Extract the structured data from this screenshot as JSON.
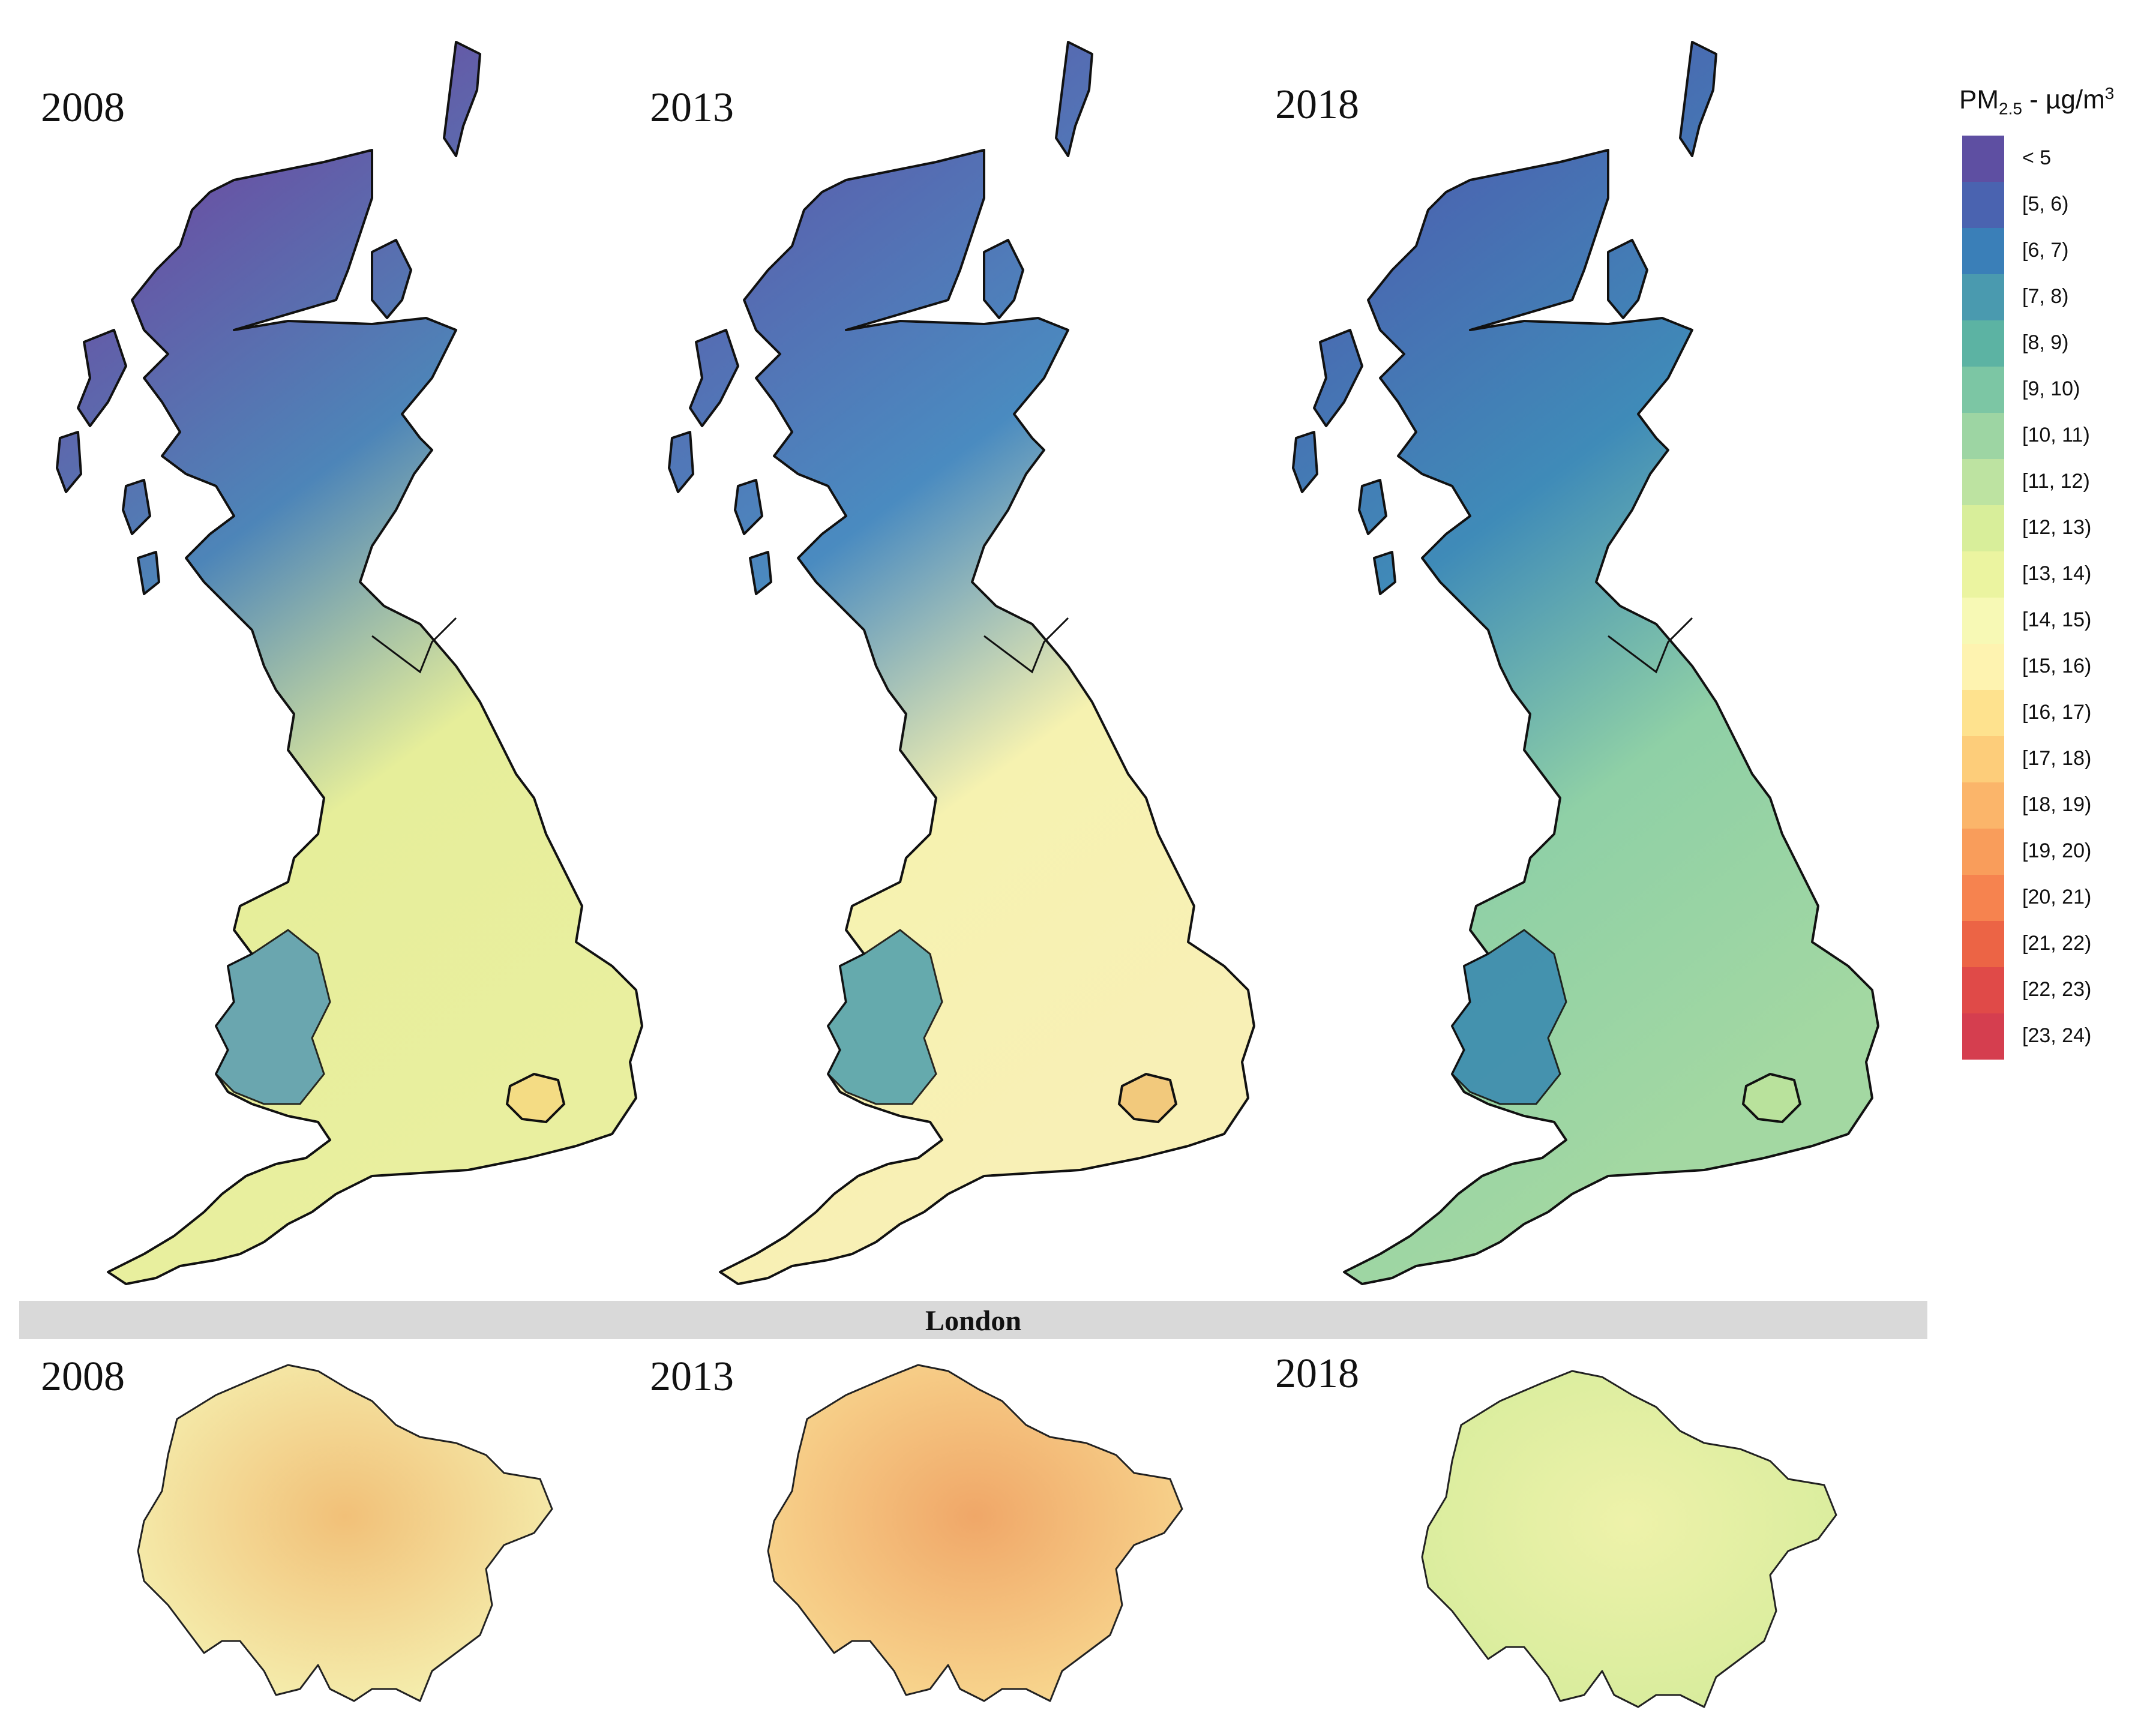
{
  "gb_maps": [
    {
      "year": "2008",
      "north": "#6a4fa3",
      "mid": "#4d85b8",
      "south": "#e6ee9a",
      "east": "#e9ef9f",
      "wales": "#5d9fb2",
      "london": "#f4dc84"
    },
    {
      "year": "2013",
      "north": "#5962ae",
      "mid": "#4a8bc0",
      "south": "#f6f2b0",
      "east": "#f8f0b6",
      "wales": "#56a3ad",
      "london": "#f2c97c"
    },
    {
      "year": "2018",
      "north": "#4b63b0",
      "mid": "#3f8bb8",
      "south": "#8fd0a6",
      "east": "#a3d8a2",
      "wales": "#3c8bb0",
      "london": "#b9e29c"
    }
  ],
  "london_section": {
    "title": "London",
    "maps": [
      {
        "year": "2008",
        "fill": "#f4f0b0",
        "hot": "#f2c078"
      },
      {
        "year": "2013",
        "fill": "#f8d890",
        "hot": "#f0a768"
      },
      {
        "year": "2018",
        "fill": "#d7ec9c",
        "hot": "#eef2aa"
      }
    ]
  },
  "legend": {
    "title_prefix": "PM",
    "title_sub": "2.5",
    "title_mid": " - µg/m",
    "title_sup": "3",
    "items": [
      {
        "label": "< 5",
        "color": "#5e4fa2"
      },
      {
        "label": "[5, 6)",
        "color": "#4a63b0"
      },
      {
        "label": "[6, 7)",
        "color": "#3a7fb8"
      },
      {
        "label": "[7, 8)",
        "color": "#4a9aaf"
      },
      {
        "label": "[8, 9)",
        "color": "#5cb3a3"
      },
      {
        "label": "[9, 10)",
        "color": "#7cc6a4"
      },
      {
        "label": "[10, 11)",
        "color": "#9dd5a3"
      },
      {
        "label": "[11, 12)",
        "color": "#bde3a1"
      },
      {
        "label": "[12, 13)",
        "color": "#d8ee9a"
      },
      {
        "label": "[13, 14)",
        "color": "#ebf4a0"
      },
      {
        "label": "[14, 15)",
        "color": "#f7f9b5"
      },
      {
        "label": "[15, 16)",
        "color": "#fef3b0"
      },
      {
        "label": "[16, 17)",
        "color": "#fee28e"
      },
      {
        "label": "[17, 18)",
        "color": "#fdcd7a"
      },
      {
        "label": "[18, 19)",
        "color": "#fbb56a"
      },
      {
        "label": "[19, 20)",
        "color": "#f99d5b"
      },
      {
        "label": "[20, 21)",
        "color": "#f6834f"
      },
      {
        "label": "[21, 22)",
        "color": "#ec6445"
      },
      {
        "label": "[22, 23)",
        "color": "#e04a48"
      },
      {
        "label": "[23, 24)",
        "color": "#d53e4f"
      }
    ]
  }
}
